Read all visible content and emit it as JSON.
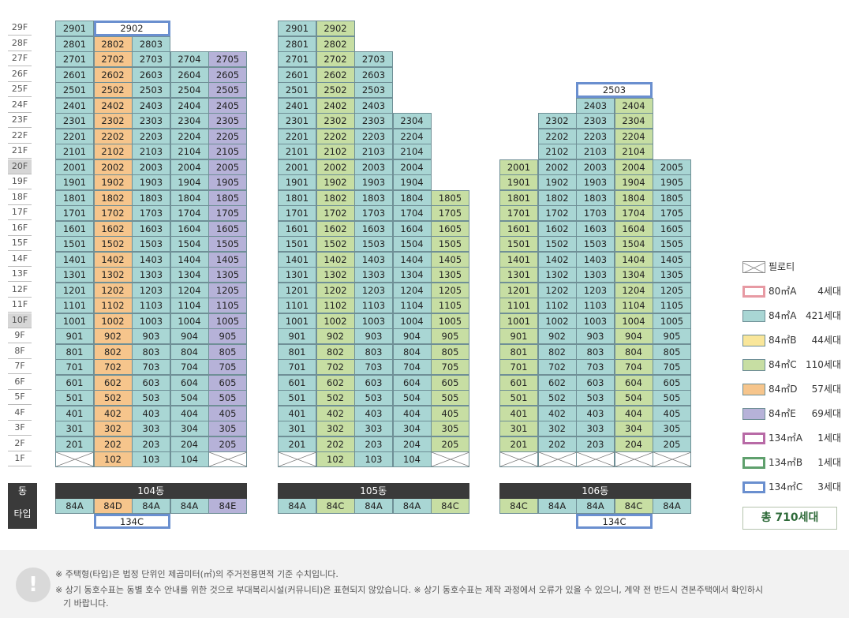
{
  "floors": [
    "29F",
    "28F",
    "27F",
    "26F",
    "25F",
    "24F",
    "23F",
    "22F",
    "21F",
    "20F",
    "19F",
    "18F",
    "17F",
    "16F",
    "15F",
    "14F",
    "13F",
    "12F",
    "11F",
    "10F",
    "9F",
    "8F",
    "7F",
    "6F",
    "5F",
    "4F",
    "3F",
    "2F",
    "1F"
  ],
  "highlight_floors": [
    "20F",
    "10F"
  ],
  "row_labels": {
    "dong": "동",
    "type": "타입"
  },
  "pilotis_label": "필로티",
  "colors": {
    "84A": "#a9d6d4",
    "84B": "#f9e69a",
    "84C": "#c7dea3",
    "84D": "#f6c58c",
    "84E": "#b6b2d8",
    "80A": "#e79aa3",
    "134A": "#b86aa6",
    "134B": "#5fa06d",
    "134C": "#6a8fcf",
    "bar": "#3a3a3a"
  },
  "buildings": [
    {
      "name": "104동",
      "lines": [
        {
          "line": "01",
          "type": "84A",
          "top": 29,
          "pilotis": true
        },
        {
          "line": "02",
          "type": "84D",
          "top": 28,
          "pilotis": false
        },
        {
          "line": "03",
          "type": "84A",
          "top": 28,
          "pilotis": false
        },
        {
          "line": "04",
          "type": "84A",
          "top": 27,
          "pilotis": false
        },
        {
          "line": "05",
          "type": "84E",
          "top": 27,
          "pilotis": true
        }
      ],
      "specials": [
        {
          "label": "2902",
          "type": "134C"
        }
      ],
      "bottom_special": "134C"
    },
    {
      "name": "105동",
      "lines": [
        {
          "line": "01",
          "type": "84A",
          "top": 29,
          "pilotis": true
        },
        {
          "line": "02",
          "type": "84C",
          "top": 29,
          "pilotis": false
        },
        {
          "line": "03",
          "type": "84A",
          "top": 27,
          "pilotis": false
        },
        {
          "line": "04",
          "type": "84A",
          "top": 23,
          "pilotis": false
        },
        {
          "line": "05",
          "type": "84C",
          "top": 18,
          "pilotis": true
        }
      ],
      "specials": [],
      "bottom_special": ""
    },
    {
      "name": "106동",
      "lines": [
        {
          "line": "01",
          "type": "84C",
          "top": 20,
          "pilotis": true
        },
        {
          "line": "02",
          "type": "84A",
          "top": 23,
          "pilotis": true
        },
        {
          "line": "03",
          "type": "84A",
          "top": 24,
          "pilotis": true
        },
        {
          "line": "04",
          "type": "84C",
          "top": 24,
          "pilotis": true
        },
        {
          "line": "05",
          "type": "84A",
          "top": 20,
          "pilotis": true
        }
      ],
      "specials": [
        {
          "label": "2503",
          "type": "134C"
        }
      ],
      "bottom_special": "134C"
    }
  ],
  "legend": [
    {
      "icon": "pilotis",
      "label": "필로티",
      "count": ""
    },
    {
      "type": "80A",
      "label": "80㎡A",
      "count": "4세대"
    },
    {
      "type": "84A",
      "label": "84㎡A",
      "count": "421세대"
    },
    {
      "type": "84B",
      "label": "84㎡B",
      "count": "44세대"
    },
    {
      "type": "84C",
      "label": "84㎡C",
      "count": "110세대"
    },
    {
      "type": "84D",
      "label": "84㎡D",
      "count": "57세대"
    },
    {
      "type": "84E",
      "label": "84㎡E",
      "count": "69세대"
    },
    {
      "type": "134A",
      "label": "134㎡A",
      "count": "1세대"
    },
    {
      "type": "134B",
      "label": "134㎡B",
      "count": "1세대"
    },
    {
      "type": "134C",
      "label": "134㎡C",
      "count": "3세대"
    }
  ],
  "total": "총 710세대",
  "notes": {
    "icon": "!",
    "line1": "※ 주택형(타입)은 법정 단위인 제곱미터(㎡)의 주거전용면적 기준 수치입니다.",
    "line2": "※ 상기 동호수표는 동별 호수 안내를 위한 것으로 부대복리시설(커뮤니티)은 표현되지 않았습니다. ※ 상기 동호수표는 제작 과정에서 오류가 있을 수 있으니, 계약 전 반드시 견본주택에서 확인하시",
    "line3": "기 바랍니다."
  }
}
